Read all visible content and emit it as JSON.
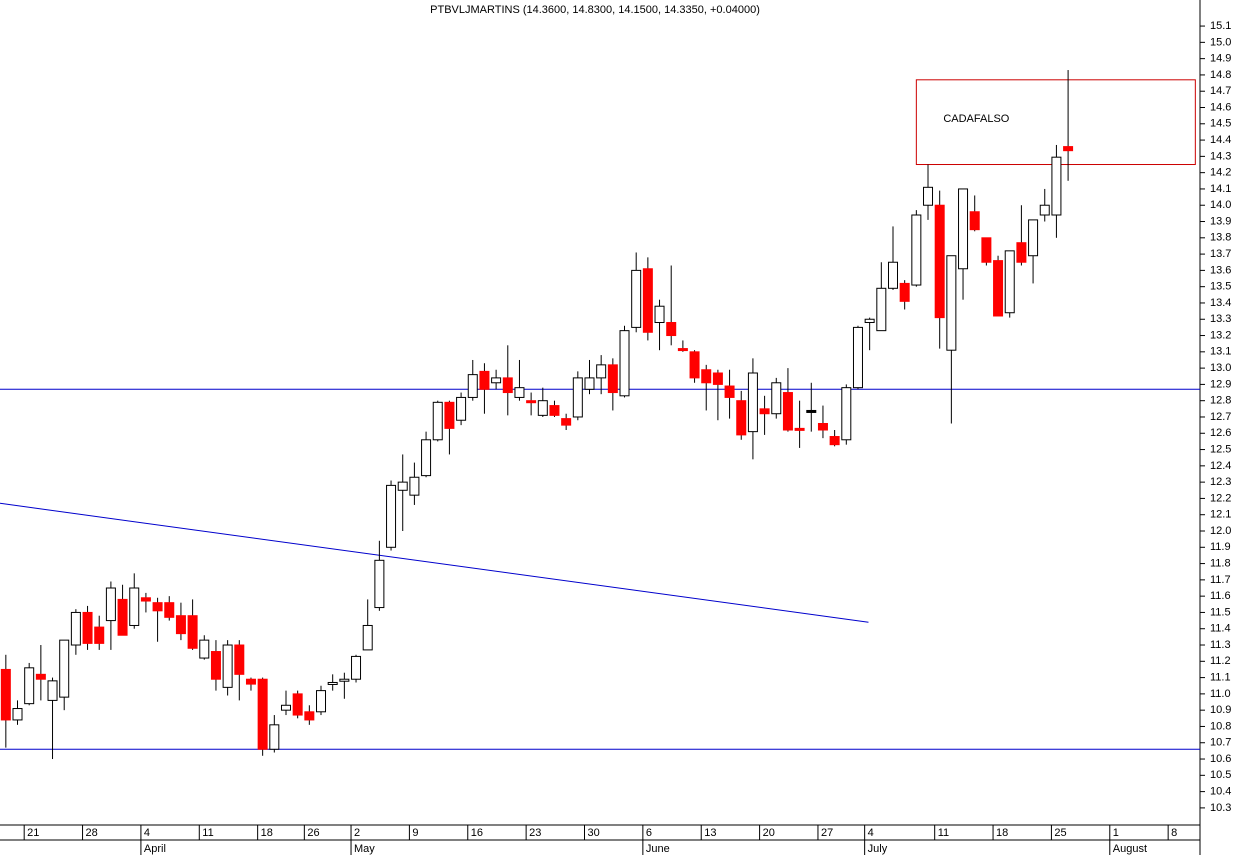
{
  "chart_data": {
    "type": "candlestick",
    "title": "PTBVLJMARTINS (14.3600, 14.8300, 14.1500, 14.3350, +0.04000)",
    "x": [
      0,
      1,
      2,
      3,
      4,
      5,
      6,
      7,
      8,
      9,
      10,
      11,
      12,
      13,
      14,
      15,
      16,
      17,
      18,
      19,
      20,
      21,
      22,
      23,
      24,
      25,
      26,
      27,
      28,
      29,
      30,
      31,
      32,
      33,
      34,
      35,
      36,
      37,
      38,
      39,
      40,
      41,
      42,
      43,
      44,
      45,
      46,
      47,
      48,
      49,
      50,
      51,
      52,
      53,
      54,
      55,
      56,
      57,
      58,
      59,
      60,
      61,
      62,
      63,
      64,
      65,
      66,
      67,
      68,
      69,
      70,
      71,
      72,
      73,
      74,
      75,
      76,
      77,
      78,
      79,
      80,
      81,
      82,
      83,
      84,
      85,
      86,
      87,
      88,
      89,
      90,
      91
    ],
    "open": [
      11.15,
      10.84,
      10.94,
      11.12,
      10.96,
      10.98,
      11.3,
      11.5,
      11.41,
      11.45,
      11.58,
      11.42,
      11.59,
      11.56,
      11.56,
      11.48,
      11.48,
      11.22,
      11.26,
      11.04,
      11.3,
      11.09,
      11.09,
      10.66,
      10.9,
      11.0,
      10.89,
      10.89,
      11.06,
      11.08,
      11.09,
      11.27,
      11.53,
      11.9,
      12.25,
      12.22,
      12.34,
      12.56,
      12.79,
      12.68,
      12.82,
      12.98,
      12.91,
      12.94,
      12.82,
      12.8,
      12.71,
      12.77,
      12.69,
      12.7,
      12.87,
      12.94,
      13.02,
      12.83,
      13.25,
      13.61,
      13.28,
      13.28,
      13.12,
      13.1,
      12.99,
      12.97,
      12.89,
      12.8,
      12.61,
      12.75,
      12.72,
      12.85,
      12.63,
      12.74,
      12.66,
      12.58,
      12.56,
      12.88,
      13.28,
      13.23,
      13.49,
      13.52,
      13.51,
      14.0,
      14.0,
      13.11,
      13.61,
      13.96,
      13.8,
      13.66,
      13.34,
      13.77,
      13.69,
      13.94,
      13.94,
      14.36
    ],
    "high": [
      11.24,
      10.96,
      11.19,
      11.3,
      11.1,
      11.33,
      11.52,
      11.54,
      11.48,
      11.69,
      11.67,
      11.74,
      11.62,
      11.59,
      11.6,
      11.56,
      11.58,
      11.36,
      11.33,
      11.33,
      11.33,
      11.1,
      11.1,
      10.87,
      11.02,
      11.02,
      10.93,
      11.05,
      11.12,
      11.13,
      11.24,
      11.58,
      11.94,
      12.31,
      12.47,
      12.42,
      12.61,
      12.8,
      12.8,
      12.85,
      13.05,
      13.03,
      12.99,
      13.14,
      13.05,
      12.85,
      12.88,
      12.8,
      12.72,
      12.98,
      13.05,
      13.08,
      13.06,
      13.26,
      13.71,
      13.68,
      13.42,
      13.63,
      13.17,
      13.11,
      13.02,
      12.99,
      12.99,
      12.86,
      13.06,
      12.83,
      12.94,
      13.0,
      12.8,
      12.91,
      12.77,
      12.62,
      12.9,
      13.26,
      13.31,
      13.65,
      13.87,
      13.54,
      13.97,
      14.25,
      14.09,
      13.69,
      14.1,
      14.06,
      13.8,
      13.69,
      13.72,
      14.0,
      13.91,
      14.1,
      14.37,
      14.83
    ],
    "low": [
      10.67,
      10.81,
      10.93,
      10.96,
      10.6,
      10.9,
      11.24,
      11.27,
      11.27,
      11.27,
      11.36,
      11.4,
      11.5,
      11.32,
      11.45,
      11.33,
      11.27,
      11.21,
      11.02,
      10.99,
      10.96,
      11.02,
      10.62,
      10.64,
      10.87,
      10.85,
      10.81,
      10.87,
      11.02,
      10.97,
      11.07,
      11.27,
      11.51,
      11.88,
      12.0,
      12.16,
      12.33,
      12.55,
      12.47,
      12.65,
      12.8,
      12.72,
      12.87,
      12.71,
      12.8,
      12.71,
      12.7,
      12.7,
      12.62,
      12.68,
      12.84,
      12.84,
      12.74,
      12.82,
      13.22,
      13.17,
      13.11,
      13.14,
      13.1,
      12.91,
      12.74,
      12.68,
      12.69,
      12.56,
      12.44,
      12.59,
      12.69,
      12.61,
      12.51,
      12.61,
      12.57,
      12.52,
      12.53,
      12.87,
      13.11,
      13.23,
      13.48,
      13.36,
      13.5,
      13.91,
      13.12,
      12.66,
      13.42,
      13.84,
      13.63,
      13.32,
      13.31,
      13.63,
      13.52,
      13.9,
      13.8,
      14.15
    ],
    "close": [
      10.84,
      10.91,
      11.16,
      11.09,
      11.08,
      11.33,
      11.5,
      11.31,
      11.31,
      11.65,
      11.36,
      11.65,
      11.57,
      11.51,
      11.47,
      11.37,
      11.28,
      11.33,
      11.09,
      11.3,
      11.12,
      11.06,
      10.66,
      10.81,
      10.93,
      10.87,
      10.84,
      11.02,
      11.07,
      11.09,
      11.23,
      11.42,
      11.82,
      12.28,
      12.3,
      12.33,
      12.56,
      12.79,
      12.63,
      12.82,
      12.96,
      12.87,
      12.94,
      12.85,
      12.88,
      12.79,
      12.8,
      12.71,
      12.65,
      12.94,
      12.94,
      13.02,
      12.85,
      13.23,
      13.6,
      13.22,
      13.38,
      13.2,
      13.11,
      12.94,
      12.91,
      12.9,
      12.82,
      12.59,
      12.97,
      12.72,
      12.91,
      12.62,
      12.62,
      12.74,
      12.62,
      12.53,
      12.88,
      13.25,
      13.3,
      13.49,
      13.65,
      13.41,
      13.94,
      14.11,
      13.31,
      13.69,
      14.1,
      13.85,
      13.65,
      13.32,
      13.72,
      13.65,
      13.91,
      14.0,
      14.295,
      14.335
    ],
    "up_color": "#ffffff",
    "down_color": "#ff0000",
    "wick_color": "#000000",
    "xlim": [
      -0.5,
      102.3
    ],
    "ylim": [
      10.195,
      15.26
    ],
    "xticks": [
      {
        "value": 2,
        "label": "21"
      },
      {
        "value": 7,
        "label": "28"
      },
      {
        "value": 12,
        "label": "4"
      },
      {
        "value": 17,
        "label": "11"
      },
      {
        "value": 22,
        "label": "18"
      },
      {
        "value": 26,
        "label": "26"
      },
      {
        "value": 30,
        "label": "2"
      },
      {
        "value": 35,
        "label": "9"
      },
      {
        "value": 40,
        "label": "16"
      },
      {
        "value": 45,
        "label": "23"
      },
      {
        "value": 50,
        "label": "30"
      },
      {
        "value": 55,
        "label": "6"
      },
      {
        "value": 60,
        "label": "13"
      },
      {
        "value": 65,
        "label": "20"
      },
      {
        "value": 70,
        "label": "27"
      },
      {
        "value": 74,
        "label": "4"
      },
      {
        "value": 80,
        "label": "11"
      },
      {
        "value": 85,
        "label": "18"
      },
      {
        "value": 90,
        "label": "25"
      },
      {
        "value": 95,
        "label": "1"
      },
      {
        "value": 100,
        "label": "8"
      }
    ],
    "month_ticks": [
      {
        "value": 12,
        "label": "April"
      },
      {
        "value": 30,
        "label": "May"
      },
      {
        "value": 55,
        "label": "June"
      },
      {
        "value": 74,
        "label": "July"
      },
      {
        "value": 95,
        "label": "August"
      }
    ],
    "yticks": [
      10.3,
      10.4,
      10.5,
      10.6,
      10.7,
      10.8,
      10.9,
      {
        "value": 11,
        "label": "11.0"
      },
      11.1,
      11.2,
      11.3,
      11.4,
      11.5,
      11.6,
      11.7,
      11.8,
      11.9,
      {
        "value": 12,
        "label": "12.0"
      },
      12.1,
      12.2,
      12.3,
      12.4,
      12.5,
      12.6,
      12.7,
      12.8,
      12.9,
      {
        "value": 13,
        "label": "13.0"
      },
      13.1,
      13.2,
      13.3,
      13.4,
      13.5,
      13.6,
      13.7,
      13.8,
      13.9,
      {
        "value": 14,
        "label": "14.0"
      },
      14.1,
      14.2,
      14.3,
      14.4,
      14.5,
      14.6,
      14.7,
      14.8,
      14.9,
      {
        "value": 15,
        "label": "15.0"
      },
      15.1
    ],
    "lines": [
      {
        "x": [
          -0.5,
          102.3
        ],
        "y": [
          12.87,
          12.87
        ],
        "color": "#0000cc"
      },
      {
        "x": [
          -0.5,
          102.3
        ],
        "y": [
          10.66,
          10.66
        ],
        "color": "#0000cc"
      },
      {
        "x": [
          -0.5,
          73.9
        ],
        "y": [
          12.17,
          11.44
        ],
        "color": "#0000cc"
      }
    ],
    "annotations": [
      {
        "text": "CADAFALSO",
        "x": [
          78,
          101.9
        ],
        "y": [
          14.25,
          14.77
        ],
        "color": "#cc0000",
        "text_color": "#0000cc"
      }
    ]
  }
}
